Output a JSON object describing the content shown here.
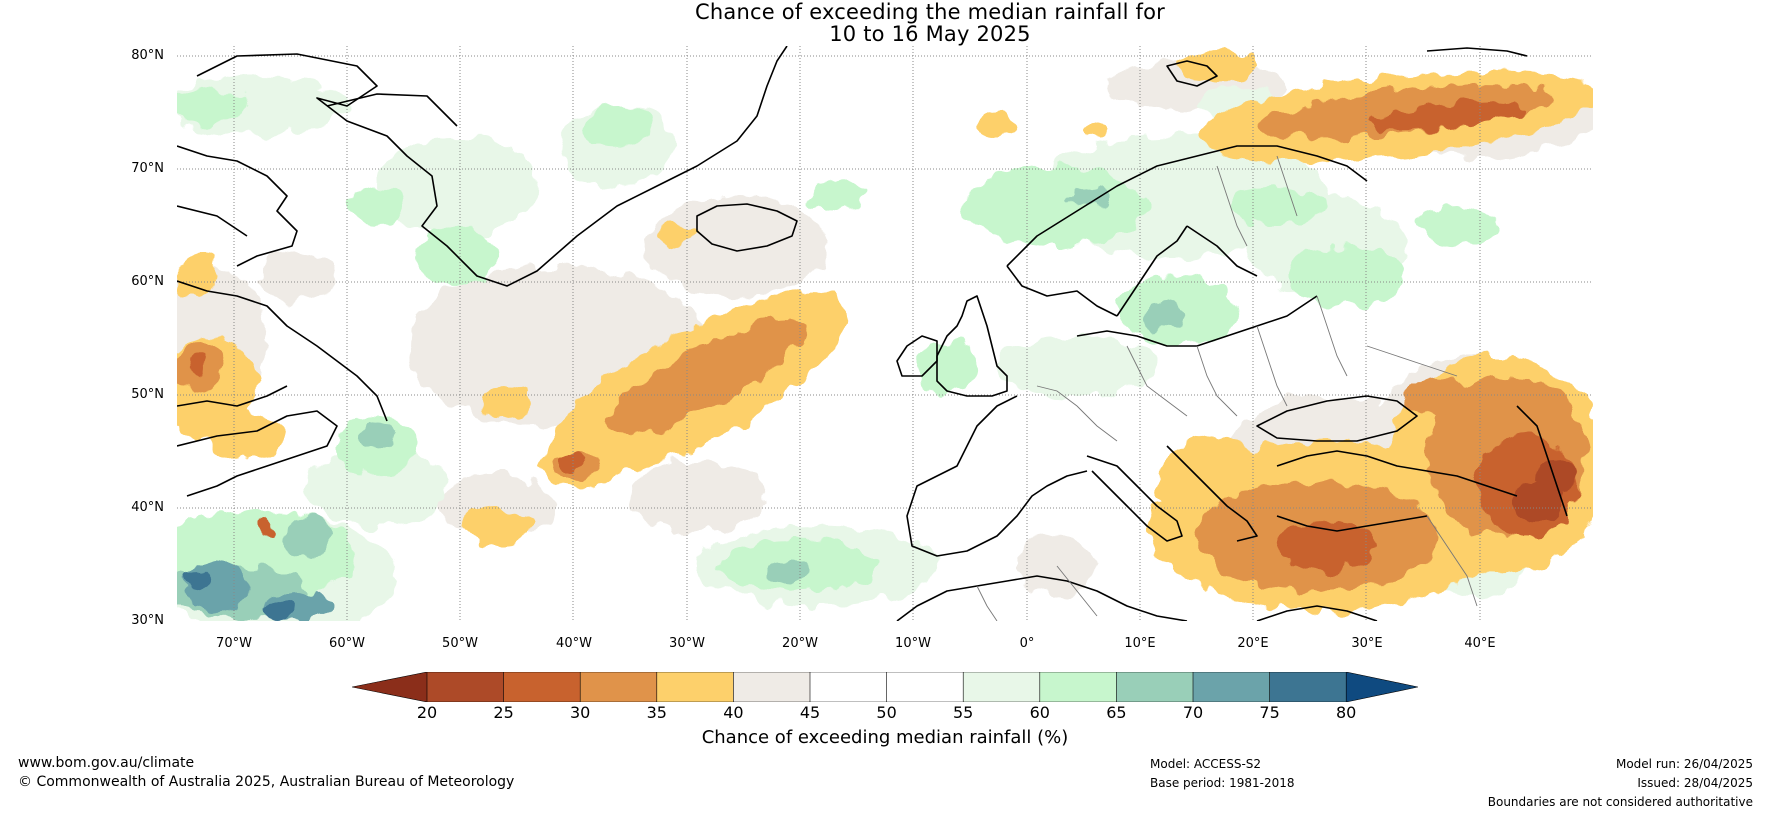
{
  "title": {
    "line1": "Chance of exceeding the median rainfall for",
    "line2": "10 to 16 May 2025"
  },
  "map": {
    "lat_labels": [
      "80°N",
      "70°N",
      "60°N",
      "50°N",
      "40°N",
      "30°N"
    ],
    "lon_labels": [
      "70°W",
      "60°W",
      "50°W",
      "40°W",
      "30°W",
      "20°W",
      "10°W",
      "0°",
      "10°E",
      "20°E",
      "30°E",
      "40°E"
    ],
    "extent": {
      "lon": [
        -75,
        50
      ],
      "lat": [
        30,
        81
      ]
    },
    "grid": "dotted"
  },
  "colorbar": {
    "ticks": [
      "20",
      "25",
      "30",
      "35",
      "40",
      "45",
      "50",
      "55",
      "60",
      "65",
      "70",
      "75",
      "80"
    ],
    "label": "Chance of exceeding median rainfall (%)",
    "colors": {
      "below_20": "#8b2e1a",
      "20_25": "#ad4a28",
      "25_30": "#c8622e",
      "30_35": "#e0934a",
      "35_40": "#fdd06b",
      "40_45": "#efebe6",
      "45_50": "#ffffff",
      "50_55": "#ffffff",
      "55_60": "#e8f7e8",
      "60_65": "#c7f6cd",
      "65_70": "#99cfb8",
      "70_75": "#6ba3aa",
      "75_80": "#3d7592",
      "above_80": "#0f4a80"
    }
  },
  "footer": {
    "website": "www.bom.gov.au/climate",
    "copyright": "© Commonwealth of Australia 2025, Australian Bureau of Meteorology",
    "model": "Model: ACCESS-S2",
    "base_period": "Base period: 1981-2018",
    "model_run": "Model run: 26/04/2025",
    "issued": "Issued: 28/04/2025",
    "disclaimer": "Boundaries are not considered authoritative"
  }
}
